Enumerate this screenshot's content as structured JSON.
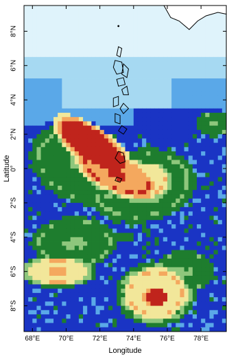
{
  "map": {
    "xlabel": "Longitude",
    "ylabel": "Latitude",
    "lon_range": [
      67.5,
      79.5
    ],
    "lat_range": [
      -9.5,
      9.5
    ],
    "x_ticks": [
      {
        "value": 68,
        "label": "68°E"
      },
      {
        "value": 70,
        "label": "70°E"
      },
      {
        "value": 72,
        "label": "72°E"
      },
      {
        "value": 74,
        "label": "74°E"
      },
      {
        "value": 76,
        "label": "76°E"
      },
      {
        "value": 78,
        "label": "78°E"
      }
    ],
    "y_ticks": [
      {
        "value": 8,
        "label": "8°N"
      },
      {
        "value": 6,
        "label": "6°N"
      },
      {
        "value": 4,
        "label": "4°N"
      },
      {
        "value": 2,
        "label": "2°N"
      },
      {
        "value": 0,
        "label": "0°"
      },
      {
        "value": -2,
        "label": "2°S"
      },
      {
        "value": -4,
        "label": "4°S"
      },
      {
        "value": -6,
        "label": "6°S"
      },
      {
        "value": -8,
        "label": "8°S"
      }
    ],
    "palette": [
      "#ffffff",
      "#dff3fb",
      "#a6d9f2",
      "#5aa8e8",
      "#1a34c4",
      "#1e7d2e",
      "#8ec77c",
      "#f2e79a",
      "#f4a85e",
      "#c0241c"
    ],
    "blobs": [
      {
        "lon": 71.6,
        "lat": 1.3,
        "a": 1.8,
        "b": 0.7,
        "rot": -35,
        "v": 10
      },
      {
        "lon": 73.0,
        "lat": -0.3,
        "a": 1.9,
        "b": 0.8,
        "rot": -25,
        "v": 9
      },
      {
        "lon": 71.0,
        "lat": 0.2,
        "a": 2.6,
        "b": 1.8,
        "rot": -20,
        "v": 6
      },
      {
        "lon": 74.5,
        "lat": -1.0,
        "a": 2.6,
        "b": 1.7,
        "rot": 10,
        "v": 6
      },
      {
        "lon": 74.6,
        "lat": -0.8,
        "a": 1.2,
        "b": 0.8,
        "rot": 10,
        "v": 8
      },
      {
        "lon": 75.3,
        "lat": -7.3,
        "a": 1.5,
        "b": 1.2,
        "rot": 0,
        "v": 8
      },
      {
        "lon": 75.3,
        "lat": -7.5,
        "a": 0.5,
        "b": 0.4,
        "rot": 0,
        "v": 10
      },
      {
        "lon": 69.5,
        "lat": -6.0,
        "a": 1.5,
        "b": 0.6,
        "rot": 0,
        "v": 8
      },
      {
        "lon": 70.5,
        "lat": -4.3,
        "a": 2.0,
        "b": 1.2,
        "rot": 0,
        "v": 6
      },
      {
        "lon": 77.0,
        "lat": -6.0,
        "a": 1.5,
        "b": 1.0,
        "rot": 0,
        "v": 6
      },
      {
        "lon": 78.8,
        "lat": 2.6,
        "a": 0.8,
        "b": 0.6,
        "rot": 0,
        "v": 6
      },
      {
        "lon": 73.5,
        "lat": -4.0,
        "a": 1.5,
        "b": 0.8,
        "rot": 0,
        "v": 5
      }
    ],
    "islands": [
      [
        [
          73.1,
          7.1
        ],
        [
          73.3,
          7.0
        ],
        [
          73.2,
          6.5
        ],
        [
          73.0,
          6.6
        ]
      ],
      [
        [
          72.9,
          6.3
        ],
        [
          73.3,
          6.2
        ],
        [
          73.4,
          5.6
        ],
        [
          73.0,
          5.5
        ],
        [
          72.8,
          5.9
        ]
      ],
      [
        [
          73.4,
          6.1
        ],
        [
          73.7,
          5.8
        ],
        [
          73.6,
          5.3
        ],
        [
          73.3,
          5.5
        ]
      ],
      [
        [
          73.0,
          5.2
        ],
        [
          73.4,
          5.3
        ],
        [
          73.5,
          4.9
        ],
        [
          73.1,
          4.8
        ]
      ],
      [
        [
          73.6,
          4.8
        ],
        [
          73.7,
          4.3
        ],
        [
          73.4,
          4.3
        ],
        [
          73.3,
          4.6
        ]
      ],
      [
        [
          72.8,
          4.1
        ],
        [
          73.1,
          4.2
        ],
        [
          73.1,
          3.7
        ],
        [
          72.8,
          3.6
        ]
      ],
      [
        [
          73.4,
          3.8
        ],
        [
          73.7,
          3.5
        ],
        [
          73.4,
          3.2
        ],
        [
          73.2,
          3.5
        ]
      ],
      [
        [
          72.9,
          3.2
        ],
        [
          73.2,
          3.1
        ],
        [
          73.2,
          2.6
        ],
        [
          72.9,
          2.7
        ]
      ],
      [
        [
          73.3,
          2.5
        ],
        [
          73.6,
          2.3
        ],
        [
          73.4,
          2.0
        ],
        [
          73.1,
          2.2
        ]
      ],
      [
        [
          73.1,
          1.0
        ],
        [
          73.4,
          0.9
        ],
        [
          73.5,
          0.4
        ],
        [
          73.2,
          0.3
        ],
        [
          72.9,
          0.6
        ]
      ],
      [
        [
          73.0,
          -0.5
        ],
        [
          73.3,
          -0.6
        ],
        [
          73.2,
          -0.8
        ],
        [
          72.9,
          -0.7
        ]
      ]
    ],
    "mainland": [
      [
        75.8,
        9.5
      ],
      [
        76.2,
        8.8
      ],
      [
        76.7,
        8.6
      ],
      [
        77.3,
        8.1
      ],
      [
        77.8,
        8.6
      ],
      [
        78.3,
        8.9
      ],
      [
        79.0,
        9.1
      ],
      [
        79.5,
        9.0
      ],
      [
        79.5,
        9.5
      ]
    ],
    "islet": [
      73.1,
      8.3
    ]
  }
}
